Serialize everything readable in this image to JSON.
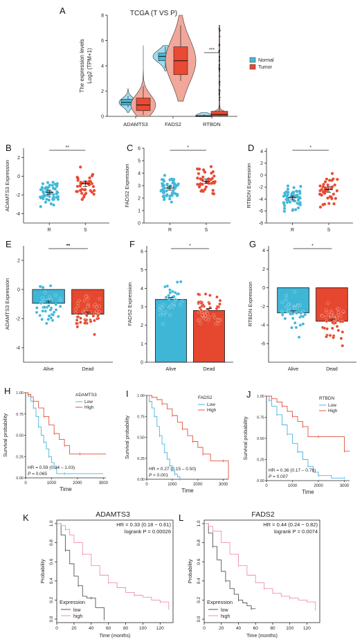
{
  "colors": {
    "normal": "#45b8d8",
    "tumor": "#e84a33",
    "blue_bar": "#3fb6d6",
    "red_bar": "#e5482f",
    "km_low": "#4bb3e0",
    "km_high": "#e0533f",
    "kmf_low": "#555555",
    "kmf_high": "#f08fb0"
  },
  "chart_data": [
    {
      "panel": "A",
      "type": "violin",
      "title": "TCGA (T VS P)",
      "ylabel": "The expression levels",
      "ylabel2": "Log2 (TPM+1)",
      "categories": [
        "ADAMTS3",
        "FADS2",
        "RTBDN"
      ],
      "ylim": [
        0,
        8
      ],
      "yticks": [
        "0",
        "2",
        "4",
        "6",
        "8"
      ],
      "legend": [
        "Normal",
        "Tumor"
      ],
      "legend_position": "right",
      "significance": "***",
      "series": [
        {
          "name": "Normal",
          "box": [
            [
              0.7,
              0.9,
              1.1,
              1.35,
              1.6
            ],
            [
              3.8,
              4.4,
              4.75,
              5.0,
              5.5
            ],
            [
              0.0,
              0.01,
              0.03,
              0.06,
              0.15
            ]
          ],
          "range": [
            [
              0.3,
              2.2
            ],
            [
              3.6,
              5.6
            ],
            [
              0.0,
              0.3
            ]
          ]
        },
        {
          "name": "Tumor",
          "box": [
            [
              0.1,
              0.45,
              0.9,
              1.45,
              2.4
            ],
            [
              2.8,
              3.3,
              4.4,
              5.5,
              7.2
            ],
            [
              0.0,
              0.05,
              0.15,
              0.4,
              0.9
            ]
          ],
          "range": [
            [
              0.0,
              5.6
            ],
            [
              1.2,
              8.0
            ],
            [
              0.0,
              7.2
            ]
          ]
        }
      ]
    },
    {
      "panel": "B",
      "type": "scatter",
      "ylabel": "ADAMTS3 Expression",
      "categories": [
        "R",
        "S"
      ],
      "ylim": [
        -5,
        3
      ],
      "yticks": [
        "-4",
        "-2",
        "0",
        "2"
      ],
      "means": [
        -1.7,
        -0.8
      ],
      "sem": [
        0.22,
        0.3
      ],
      "significance": "**"
    },
    {
      "panel": "C",
      "type": "scatter",
      "ylabel": "FADS2 Expression",
      "categories": [
        "R",
        "S"
      ],
      "ylim": [
        0,
        6
      ],
      "yticks": [
        "0",
        "1",
        "2",
        "3",
        "4",
        "5",
        "6"
      ],
      "means": [
        2.8,
        3.35
      ],
      "sem": [
        0.15,
        0.18
      ],
      "significance": "*"
    },
    {
      "panel": "D",
      "type": "scatter",
      "ylabel": "RTBDN Expression",
      "categories": [
        "R",
        "S"
      ],
      "ylim": [
        -8,
        4.5
      ],
      "yticks": [
        "-8",
        "-6",
        "-4",
        "-2",
        "0",
        "2",
        "4"
      ],
      "means": [
        -3.8,
        -2.4
      ],
      "sem": [
        0.3,
        0.45
      ],
      "significance": "*"
    },
    {
      "panel": "E",
      "type": "bar",
      "ylabel": "ADAMTS3 Expression",
      "categories": [
        "Alive",
        "Dead"
      ],
      "values": [
        -0.95,
        -1.7
      ],
      "ylim": [
        -5,
        3
      ],
      "yticks": [
        "-4",
        "-2",
        "0",
        "2"
      ],
      "significance": "**"
    },
    {
      "panel": "F",
      "type": "bar",
      "ylabel": "FADS2 Expression",
      "categories": [
        "Alive",
        "Dead"
      ],
      "values": [
        3.4,
        2.8
      ],
      "ylim": [
        0,
        6.3
      ],
      "yticks": [
        "0",
        "1",
        "2",
        "3",
        "4",
        "5",
        "6"
      ],
      "significance": "*"
    },
    {
      "panel": "G",
      "type": "bar",
      "ylabel": "RTBDN Expression",
      "categories": [
        "Alive",
        "Dead"
      ],
      "values": [
        -2.7,
        -3.6
      ],
      "ylim": [
        -8,
        4.5
      ],
      "yticks": [
        "-6",
        "-4",
        "-2",
        "0",
        "2",
        "4"
      ],
      "significance": "*"
    },
    {
      "panel": "H",
      "type": "line",
      "ylabel": "Survival probability",
      "xlabel": "Time",
      "xlim": [
        0,
        3100
      ],
      "xticks": [
        "0",
        "1000",
        "2000",
        "3000"
      ],
      "yticks": [
        "0.00",
        "0.25",
        "0.50",
        "0.75",
        "1.00"
      ],
      "legend_title": "ADAMTS3",
      "legend": [
        "Low",
        "High"
      ],
      "hr": "HR = 0.59 (0.34 – 1.03)",
      "pval_label": "P",
      "pval_value": " = 0.065",
      "series": [
        {
          "name": "Low",
          "x": [
            0,
            100,
            200,
            300,
            400,
            500,
            600,
            700,
            800,
            900,
            1000,
            1100,
            1200,
            1500,
            3000
          ],
          "y": [
            1.0,
            0.96,
            0.9,
            0.82,
            0.72,
            0.6,
            0.5,
            0.42,
            0.34,
            0.25,
            0.18,
            0.12,
            0.05,
            0.05,
            0.05
          ]
        },
        {
          "name": "High",
          "x": [
            0,
            100,
            200,
            300,
            500,
            700,
            900,
            1100,
            1300,
            1500,
            1700,
            2100,
            3100
          ],
          "y": [
            1.0,
            0.98,
            0.95,
            0.9,
            0.82,
            0.72,
            0.62,
            0.52,
            0.45,
            0.38,
            0.28,
            0.28,
            0.28
          ]
        }
      ]
    },
    {
      "panel": "I",
      "type": "line",
      "ylabel": "Survival probability",
      "xlabel": "Time",
      "xlim": [
        0,
        3200
      ],
      "xticks": [
        "0",
        "1000",
        "2000",
        "3000"
      ],
      "yticks": [
        "0.00",
        "0.25",
        "0.50",
        "0.75",
        "1.00"
      ],
      "legend_title": "FADS2",
      "legend": [
        "Low",
        "High"
      ],
      "hr": "HR = 0.27 (0.15 – 0.50)",
      "pval_label": "P",
      "pval_value": " < 0.001",
      "series": [
        {
          "name": "Low",
          "x": [
            0,
            100,
            200,
            300,
            400,
            500,
            600,
            700,
            800,
            900,
            1000,
            1100,
            1200,
            1300
          ],
          "y": [
            1.0,
            0.93,
            0.85,
            0.75,
            0.63,
            0.52,
            0.42,
            0.32,
            0.24,
            0.16,
            0.1,
            0.06,
            0.03,
            0.0
          ]
        },
        {
          "name": "High",
          "x": [
            0,
            200,
            400,
            600,
            800,
            1000,
            1200,
            1400,
            1600,
            1800,
            2000,
            2200,
            2500,
            3000,
            3200
          ],
          "y": [
            1.0,
            0.98,
            0.95,
            0.9,
            0.84,
            0.76,
            0.68,
            0.6,
            0.52,
            0.45,
            0.38,
            0.3,
            0.22,
            0.22,
            0.0
          ]
        }
      ]
    },
    {
      "panel": "J",
      "type": "line",
      "ylabel": "Survival probability",
      "xlabel": "Time",
      "xlim": [
        0,
        3200
      ],
      "xticks": [
        "0",
        "1000",
        "2000",
        "3000"
      ],
      "yticks": [
        "0.00",
        "0.25",
        "0.50",
        "0.75",
        "1.00"
      ],
      "legend_title": "RTBDN",
      "legend": [
        "Low",
        "High"
      ],
      "hr": "HR = 0.36 (0.17 – 0.76)",
      "pval_label": "P",
      "pval_value": " = 0.007",
      "series": [
        {
          "name": "Low",
          "x": [
            0,
            100,
            200,
            400,
            600,
            800,
            1000,
            1200,
            1400,
            1600,
            1800,
            2000,
            2500,
            3000
          ],
          "y": [
            1.0,
            0.95,
            0.88,
            0.78,
            0.66,
            0.55,
            0.44,
            0.34,
            0.25,
            0.17,
            0.1,
            0.06,
            0.03,
            0.03
          ]
        },
        {
          "name": "High",
          "x": [
            0,
            200,
            400,
            600,
            800,
            1000,
            1200,
            1400,
            1600,
            2000,
            2600,
            3000,
            3200
          ],
          "y": [
            1.0,
            0.97,
            0.93,
            0.88,
            0.82,
            0.76,
            0.7,
            0.64,
            0.52,
            0.52,
            0.52,
            0.35,
            0.35
          ]
        }
      ]
    },
    {
      "panel": "K",
      "type": "line",
      "title": "ADAMTS3",
      "ylabel": "Probability",
      "xlabel": "Time (months)",
      "xlim": [
        0,
        135
      ],
      "ylim": [
        0,
        1
      ],
      "xticks": [
        "0",
        "20",
        "40",
        "60",
        "80",
        "100",
        "120"
      ],
      "yticks": [
        "0.0",
        "0.2",
        "0.4",
        "0.6",
        "0.8",
        "1.0"
      ],
      "hr": "HR = 0.33 (0.18 − 0.61)",
      "logrank": "logrank P = 0.00026",
      "legend_title": "Expression",
      "legend": [
        "low",
        "high"
      ],
      "series": [
        {
          "name": "low",
          "x": [
            0,
            5,
            10,
            15,
            20,
            25,
            30,
            35,
            40,
            45,
            50,
            55
          ],
          "y": [
            1.0,
            0.88,
            0.72,
            0.58,
            0.45,
            0.35,
            0.24,
            0.22,
            0.22,
            0.12,
            0.12,
            0.0
          ]
        },
        {
          "name": "high",
          "x": [
            0,
            5,
            10,
            15,
            20,
            30,
            40,
            50,
            60,
            70,
            80,
            90,
            100,
            110,
            120,
            130
          ],
          "y": [
            1.0,
            0.98,
            0.94,
            0.88,
            0.8,
            0.68,
            0.56,
            0.46,
            0.38,
            0.33,
            0.28,
            0.25,
            0.23,
            0.2,
            0.18,
            0.1
          ]
        }
      ]
    },
    {
      "panel": "L",
      "type": "line",
      "title": "FADS2",
      "ylabel": "Probability",
      "xlabel": "Time (months)",
      "xlim": [
        0,
        135
      ],
      "ylim": [
        0,
        1
      ],
      "xticks": [
        "0",
        "20",
        "40",
        "60",
        "80",
        "100",
        "120"
      ],
      "yticks": [
        "0.0",
        "0.2",
        "0.4",
        "0.6",
        "0.8",
        "1.0"
      ],
      "hr": "HR = 0.44 (0.24 − 0.82)",
      "logrank": "logrank P = 0.0074",
      "legend_title": "Expression",
      "legend": [
        "low",
        "high"
      ],
      "series": [
        {
          "name": "low",
          "x": [
            0,
            5,
            10,
            15,
            20,
            25,
            30,
            35,
            40,
            45,
            50,
            55,
            60
          ],
          "y": [
            1.0,
            0.9,
            0.76,
            0.62,
            0.5,
            0.4,
            0.32,
            0.26,
            0.2,
            0.17,
            0.14,
            0.11,
            0.11
          ]
        },
        {
          "name": "high",
          "x": [
            0,
            5,
            10,
            20,
            30,
            40,
            50,
            60,
            70,
            80,
            90,
            100,
            110,
            120,
            130
          ],
          "y": [
            1.0,
            0.97,
            0.92,
            0.8,
            0.68,
            0.56,
            0.46,
            0.38,
            0.32,
            0.27,
            0.24,
            0.22,
            0.2,
            0.18,
            0.1
          ]
        }
      ]
    }
  ]
}
